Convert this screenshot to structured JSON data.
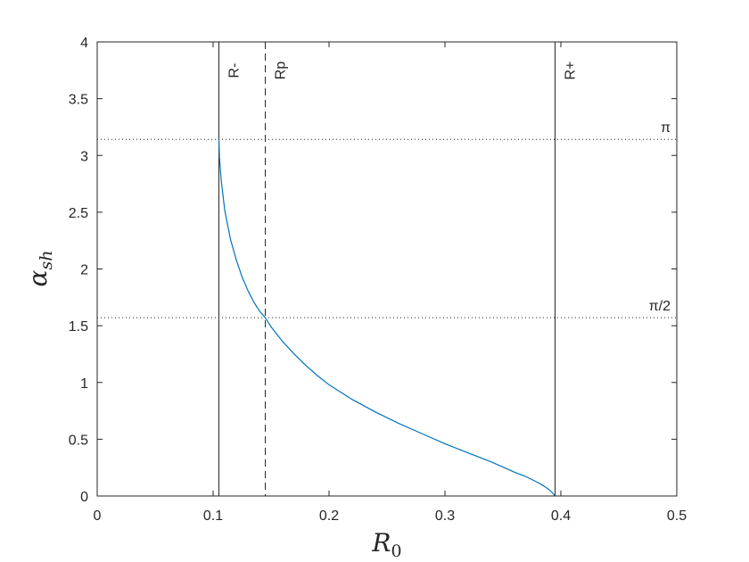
{
  "chart_data": {
    "type": "line",
    "title": "",
    "xlabel": "R",
    "xlabel_sub": "0",
    "ylabel": "α",
    "ylabel_sub": "sh",
    "xlim": [
      0,
      0.5
    ],
    "ylim": [
      0,
      4
    ],
    "xticks": [
      0,
      0.1,
      0.2,
      0.3,
      0.4,
      0.5
    ],
    "xtick_labels": [
      "0",
      "0.1",
      "0.2",
      "0.3",
      "0.4",
      "0.5"
    ],
    "yticks": [
      0,
      0.5,
      1,
      1.5,
      2,
      2.5,
      3,
      3.5,
      4
    ],
    "ytick_labels": [
      "0",
      "0.5",
      "1",
      "1.5",
      "2",
      "2.5",
      "3",
      "3.5",
      "4"
    ],
    "grid": false,
    "color": "#0072bd",
    "series": [
      {
        "x": [
          0.105,
          0.1055,
          0.107,
          0.11,
          0.115,
          0.12,
          0.125,
          0.13,
          0.135,
          0.14,
          0.145,
          0.15,
          0.16,
          0.17,
          0.18,
          0.19,
          0.2,
          0.22,
          0.24,
          0.26,
          0.28,
          0.3,
          0.32,
          0.34,
          0.36,
          0.37,
          0.38,
          0.385,
          0.39,
          0.393,
          0.395
        ],
        "y": [
          3.14,
          2.98,
          2.78,
          2.52,
          2.26,
          2.08,
          1.93,
          1.81,
          1.71,
          1.63,
          1.57,
          1.49,
          1.36,
          1.25,
          1.15,
          1.06,
          0.98,
          0.85,
          0.74,
          0.64,
          0.55,
          0.46,
          0.38,
          0.3,
          0.21,
          0.17,
          0.12,
          0.09,
          0.055,
          0.025,
          0.0
        ]
      }
    ],
    "vertical_lines": [
      {
        "x": 0.105,
        "label": "R-",
        "style": "solid"
      },
      {
        "x": 0.145,
        "label": "Rp",
        "style": "dashed"
      },
      {
        "x": 0.395,
        "label": "R+",
        "style": "solid"
      }
    ],
    "horizontal_lines": [
      {
        "y": 3.1416,
        "label": "π",
        "style": "dotted"
      },
      {
        "y": 1.5708,
        "label": "π/2",
        "style": "dotted"
      }
    ]
  }
}
